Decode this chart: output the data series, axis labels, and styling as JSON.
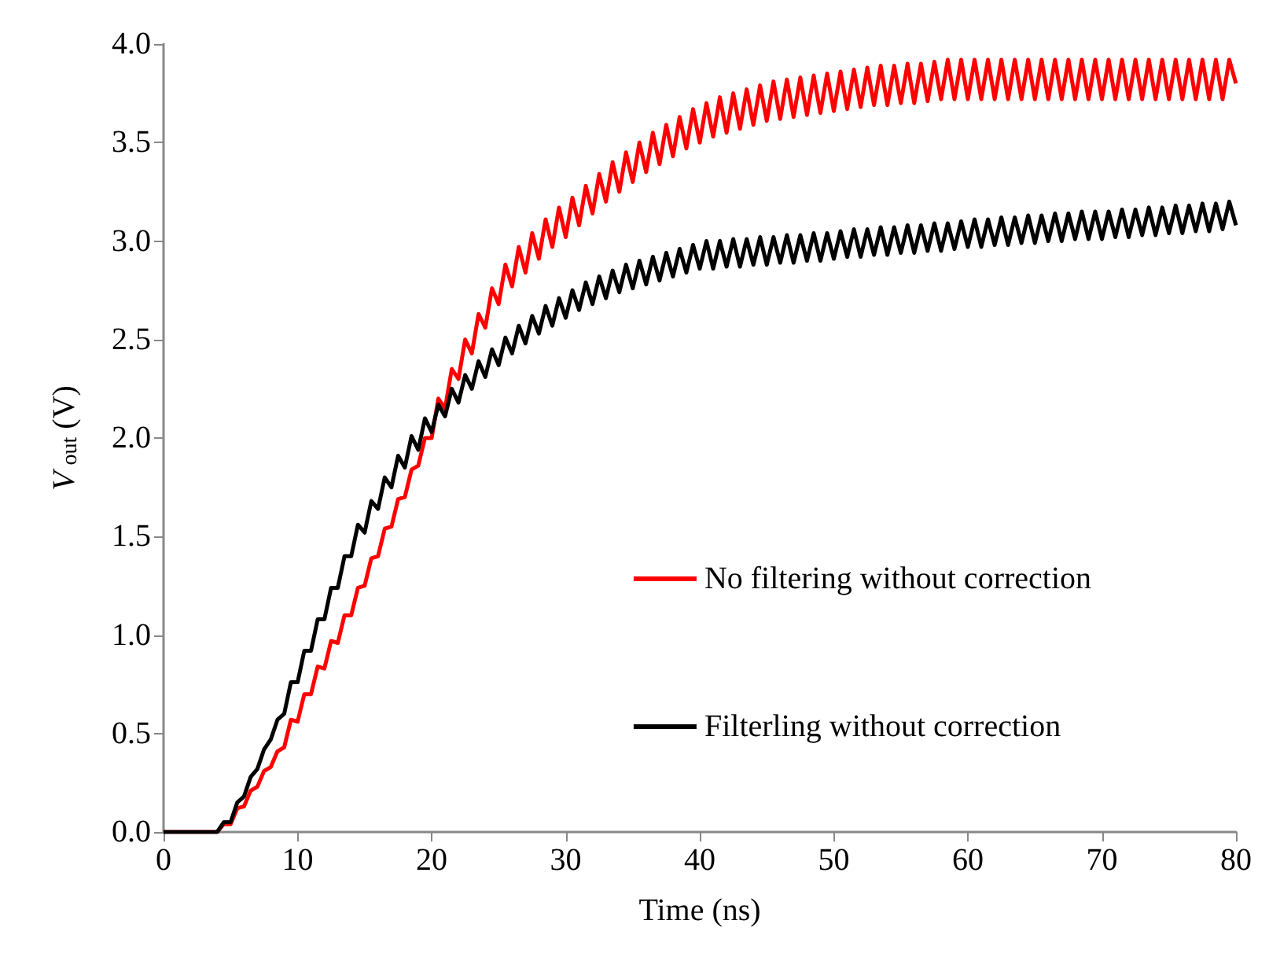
{
  "chart_data": {
    "type": "line",
    "xlabel": "Time (ns)",
    "ylabel": "V$_{out}$ (V)",
    "xlim": [
      0,
      80
    ],
    "xticks": [
      0,
      10,
      20,
      30,
      40,
      50,
      60,
      70,
      80
    ],
    "ylim": [
      0,
      4
    ],
    "yticks": [
      {
        "value": 0,
        "label": "0.0"
      },
      0.5,
      {
        "value": 1,
        "label": "1.0"
      },
      1.5,
      {
        "value": 2,
        "label": "2.0"
      },
      2.5,
      {
        "value": 3,
        "label": "3.0"
      },
      3.5,
      {
        "value": 4,
        "label": "4.0"
      }
    ],
    "grid": false,
    "legend": "right",
    "marker": "none",
    "line_style": "solid",
    "x": [
      0,
      4,
      4.5,
      5,
      5.5,
      6,
      6.5,
      7,
      7.5,
      8,
      8.5,
      9,
      9.5,
      10,
      10.5,
      11,
      11.5,
      12,
      12.5,
      13,
      13.5,
      14,
      14.5,
      15,
      15.5,
      16,
      16.5,
      17,
      17.5,
      18,
      18.5,
      19,
      19.5,
      20,
      20.5,
      21,
      21.5,
      22,
      22.5,
      23,
      23.5,
      24,
      24.5,
      25,
      25.5,
      26,
      26.5,
      27,
      27.5,
      28,
      28.5,
      29,
      29.5,
      30,
      30.5,
      31,
      31.5,
      32,
      32.5,
      33,
      33.5,
      34,
      34.5,
      35,
      35.5,
      36,
      36.5,
      37,
      37.5,
      38,
      38.5,
      39,
      39.5,
      40,
      40.5,
      41,
      41.5,
      42,
      42.5,
      43,
      43.5,
      44,
      44.5,
      45,
      45.5,
      46,
      46.5,
      47,
      47.5,
      48,
      48.5,
      49,
      49.5,
      50,
      50.5,
      51,
      51.5,
      52,
      52.5,
      53,
      53.5,
      54,
      54.5,
      55,
      55.5,
      56,
      56.5,
      57,
      57.5,
      58,
      58.5,
      59,
      59.5,
      60,
      60.5,
      61,
      61.5,
      62,
      62.5,
      63,
      63.5,
      64,
      64.5,
      65,
      65.5,
      66,
      66.5,
      67,
      67.5,
      68,
      68.5,
      69,
      69.5,
      70,
      70.5,
      71,
      71.5,
      72,
      72.5,
      73,
      73.5,
      74,
      74.5,
      75,
      75.5,
      76,
      76.5,
      77,
      77.5,
      78,
      78.5,
      79,
      79.5,
      80
    ],
    "series": [
      {
        "name": "No filtering without correction",
        "color": "#ff0000",
        "values": [
          0,
          0,
          0.04,
          0.04,
          0.12,
          0.13,
          0.21,
          0.23,
          0.31,
          0.33,
          0.41,
          0.43,
          0.57,
          0.56,
          0.7,
          0.7,
          0.84,
          0.83,
          0.97,
          0.96,
          1.1,
          1.1,
          1.24,
          1.25,
          1.39,
          1.4,
          1.54,
          1.55,
          1.69,
          1.7,
          1.84,
          1.86,
          2.0,
          2.0,
          2.2,
          2.15,
          2.35,
          2.3,
          2.5,
          2.43,
          2.63,
          2.56,
          2.76,
          2.68,
          2.88,
          2.77,
          2.97,
          2.84,
          3.04,
          2.91,
          3.11,
          2.97,
          3.17,
          3.02,
          3.22,
          3.08,
          3.28,
          3.14,
          3.34,
          3.2,
          3.4,
          3.25,
          3.45,
          3.3,
          3.5,
          3.35,
          3.55,
          3.39,
          3.59,
          3.43,
          3.63,
          3.47,
          3.67,
          3.5,
          3.7,
          3.53,
          3.73,
          3.55,
          3.75,
          3.57,
          3.77,
          3.59,
          3.79,
          3.61,
          3.81,
          3.62,
          3.82,
          3.63,
          3.83,
          3.64,
          3.84,
          3.65,
          3.85,
          3.66,
          3.86,
          3.67,
          3.87,
          3.68,
          3.88,
          3.69,
          3.89,
          3.69,
          3.89,
          3.7,
          3.9,
          3.7,
          3.9,
          3.71,
          3.91,
          3.72,
          3.92,
          3.72,
          3.92,
          3.72,
          3.92,
          3.72,
          3.92,
          3.72,
          3.92,
          3.72,
          3.92,
          3.72,
          3.92,
          3.72,
          3.92,
          3.72,
          3.92,
          3.72,
          3.92,
          3.72,
          3.92,
          3.72,
          3.92,
          3.72,
          3.92,
          3.72,
          3.92,
          3.72,
          3.92,
          3.72,
          3.92,
          3.72,
          3.92,
          3.72,
          3.92,
          3.72,
          3.92,
          3.72,
          3.92,
          3.72,
          3.92,
          3.72,
          3.92,
          3.8
        ]
      },
      {
        "name": "Filterling without correction",
        "color": "#000000",
        "values": [
          0,
          0,
          0.05,
          0.05,
          0.15,
          0.18,
          0.28,
          0.32,
          0.42,
          0.47,
          0.57,
          0.6,
          0.76,
          0.76,
          0.92,
          0.92,
          1.08,
          1.08,
          1.24,
          1.24,
          1.4,
          1.4,
          1.56,
          1.52,
          1.68,
          1.64,
          1.8,
          1.75,
          1.91,
          1.85,
          2.01,
          1.94,
          2.1,
          2.03,
          2.17,
          2.11,
          2.25,
          2.18,
          2.32,
          2.25,
          2.39,
          2.31,
          2.45,
          2.37,
          2.51,
          2.43,
          2.57,
          2.48,
          2.62,
          2.53,
          2.67,
          2.57,
          2.71,
          2.61,
          2.75,
          2.65,
          2.79,
          2.68,
          2.82,
          2.71,
          2.85,
          2.74,
          2.88,
          2.76,
          2.9,
          2.78,
          2.92,
          2.8,
          2.94,
          2.82,
          2.96,
          2.84,
          2.98,
          2.86,
          3.0,
          2.86,
          3.0,
          2.87,
          3.01,
          2.87,
          3.01,
          2.88,
          3.02,
          2.88,
          3.02,
          2.89,
          3.03,
          2.89,
          3.03,
          2.9,
          3.04,
          2.9,
          3.04,
          2.91,
          3.05,
          2.92,
          3.06,
          2.92,
          3.06,
          2.93,
          3.07,
          2.93,
          3.07,
          2.94,
          3.08,
          2.94,
          3.08,
          2.95,
          3.09,
          2.95,
          3.09,
          2.96,
          3.1,
          2.97,
          3.11,
          2.97,
          3.11,
          2.98,
          3.12,
          2.98,
          3.12,
          2.99,
          3.13,
          2.99,
          3.13,
          3.0,
          3.14,
          3.0,
          3.14,
          3.01,
          3.15,
          3.01,
          3.15,
          3.01,
          3.15,
          3.02,
          3.16,
          3.02,
          3.16,
          3.03,
          3.17,
          3.03,
          3.17,
          3.04,
          3.18,
          3.04,
          3.18,
          3.05,
          3.19,
          3.05,
          3.19,
          3.06,
          3.2,
          3.08
        ]
      }
    ]
  }
}
